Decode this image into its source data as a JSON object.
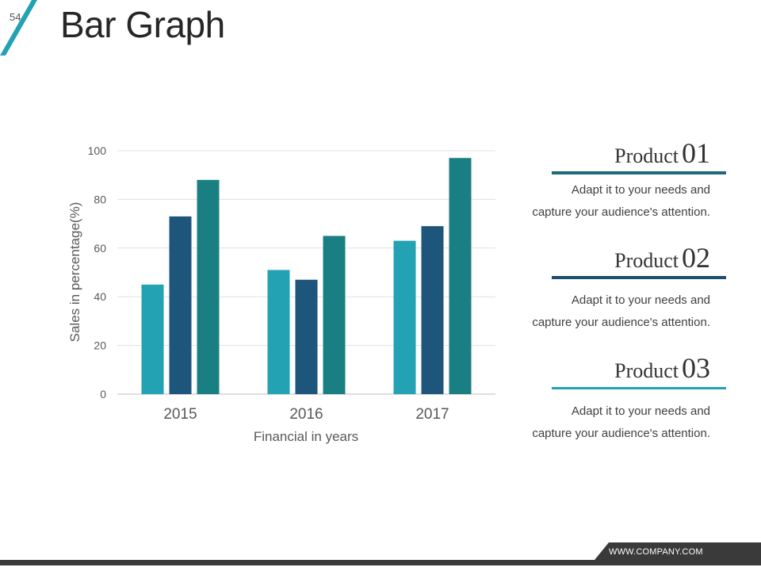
{
  "slide": {
    "number": "54",
    "title": "Bar Graph"
  },
  "chart_data": {
    "type": "bar",
    "categories": [
      "2015",
      "2016",
      "2017"
    ],
    "series": [
      {
        "name": "Product 01",
        "values": [
          45,
          51,
          63
        ],
        "color": "#22a2b3"
      },
      {
        "name": "Product 02",
        "values": [
          73,
          47,
          69
        ],
        "color": "#1d557b"
      },
      {
        "name": "Product 03",
        "values": [
          88,
          65,
          97
        ],
        "color": "#1a7f82"
      }
    ],
    "yticks": [
      0,
      20,
      40,
      60,
      80,
      100
    ],
    "ylim": [
      0,
      100
    ],
    "xlabel": "Financial in years",
    "ylabel": "Sales in percentage(%)",
    "grid": true,
    "legend": "right"
  },
  "products": [
    {
      "word": "Product",
      "number": "01",
      "line1": "Adapt it to your needs and",
      "line2": "capture your audience's attention.",
      "rule_color": "#1d6a78"
    },
    {
      "word": "Product",
      "number": "02",
      "line1": "Adapt it to your needs and",
      "line2": "capture your audience's attention.",
      "rule_color": "#1d4f6e"
    },
    {
      "word": "Product",
      "number": "03",
      "line1": "Adapt it to your needs and",
      "line2": "capture your audience's attention.",
      "rule_color": "#22a2b3"
    }
  ],
  "footer": {
    "url": "WWW.COMPANY.COM"
  },
  "theme": {
    "accent": "#22a2b3",
    "dark": "#3a3a3a"
  }
}
